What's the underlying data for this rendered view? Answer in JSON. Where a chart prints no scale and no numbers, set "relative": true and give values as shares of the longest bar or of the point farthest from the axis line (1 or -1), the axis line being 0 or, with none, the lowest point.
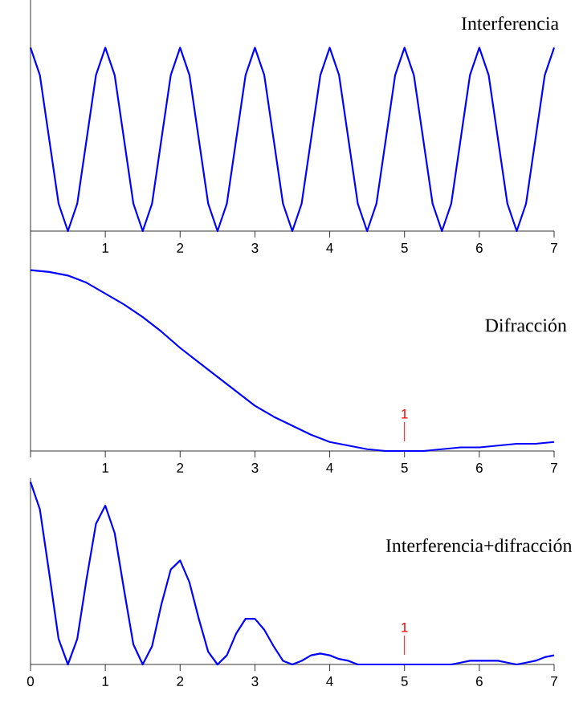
{
  "chart_data": [
    {
      "type": "line",
      "title": "Interferencia",
      "relative": true,
      "tick_labels": "x",
      "x": [
        0,
        0.125,
        0.25,
        0.375,
        0.5,
        0.625,
        0.75,
        0.875,
        1,
        1.125,
        1.25,
        1.375,
        1.5,
        1.625,
        1.75,
        1.875,
        2,
        2.125,
        2.25,
        2.375,
        2.5,
        2.625,
        2.75,
        2.875,
        3,
        3.125,
        3.25,
        3.375,
        3.5,
        3.625,
        3.75,
        3.875,
        4,
        4.125,
        4.25,
        4.375,
        4.5,
        4.625,
        4.75,
        4.875,
        5,
        5.125,
        5.25,
        5.375,
        5.5,
        5.625,
        5.75,
        5.875,
        6,
        6.125,
        6.25,
        6.375,
        6.5,
        6.625,
        6.75,
        6.875,
        7
      ],
      "series": [
        {
          "color": "#0000ff",
          "values": [
            1,
            0.85,
            0.5,
            0.15,
            0,
            0.15,
            0.5,
            0.85,
            1,
            0.85,
            0.5,
            0.15,
            0,
            0.15,
            0.5,
            0.85,
            1,
            0.85,
            0.5,
            0.15,
            0,
            0.15,
            0.5,
            0.85,
            1,
            0.85,
            0.5,
            0.15,
            0,
            0.15,
            0.5,
            0.85,
            1,
            0.85,
            0.5,
            0.15,
            0,
            0.15,
            0.5,
            0.85,
            1,
            0.85,
            0.5,
            0.15,
            0,
            0.15,
            0.5,
            0.85,
            1,
            0.85,
            0.5,
            0.15,
            0,
            0.15,
            0.5,
            0.85,
            1
          ]
        }
      ],
      "xlim": [
        0,
        7
      ],
      "xticks": [
        {
          "value": 0,
          "label": null
        },
        1,
        2,
        3,
        4,
        5,
        6,
        7
      ]
    },
    {
      "type": "line",
      "title": "Difracción",
      "relative": true,
      "tick_labels": "x",
      "x": [
        0,
        0.25,
        0.5,
        0.75,
        1,
        1.25,
        1.5,
        1.75,
        2,
        2.25,
        2.5,
        2.75,
        3,
        3.25,
        3.5,
        3.75,
        4,
        4.25,
        4.5,
        4.75,
        5,
        5.25,
        5.5,
        5.75,
        6,
        6.25,
        6.5,
        6.75,
        7
      ],
      "series": [
        {
          "color": "#0000ff",
          "values": [
            1,
            0.99,
            0.97,
            0.93,
            0.87,
            0.81,
            0.74,
            0.66,
            0.57,
            0.49,
            0.41,
            0.33,
            0.25,
            0.19,
            0.14,
            0.09,
            0.05,
            0.03,
            0.01,
            0,
            0,
            0,
            0.01,
            0.02,
            0.02,
            0.03,
            0.04,
            0.04,
            0.05
          ]
        }
      ],
      "xlim": [
        0,
        7
      ],
      "xticks": [
        {
          "value": 0,
          "label": null
        },
        1,
        2,
        3,
        4,
        5,
        6,
        7
      ],
      "annotations": [
        {
          "text": "1",
          "x": 5,
          "y": 0
        }
      ]
    },
    {
      "type": "line",
      "title": "Interferencia+difracción",
      "relative": true,
      "tick_labels": "x",
      "x": [
        0,
        0.125,
        0.25,
        0.375,
        0.5,
        0.625,
        0.75,
        0.875,
        1,
        1.125,
        1.25,
        1.375,
        1.5,
        1.625,
        1.75,
        1.875,
        2,
        2.125,
        2.25,
        2.375,
        2.5,
        2.625,
        2.75,
        2.875,
        3,
        3.125,
        3.25,
        3.375,
        3.5,
        3.625,
        3.75,
        3.875,
        4,
        4.125,
        4.25,
        4.375,
        4.5,
        4.625,
        4.75,
        4.875,
        5,
        5.125,
        5.25,
        5.375,
        5.5,
        5.625,
        5.75,
        5.875,
        6,
        6.125,
        6.25,
        6.375,
        6.5,
        6.625,
        6.75,
        6.875,
        7
      ],
      "series": [
        {
          "color": "#0000ff",
          "values": [
            1,
            0.85,
            0.5,
            0.14,
            0,
            0.14,
            0.47,
            0.77,
            0.87,
            0.72,
            0.41,
            0.11,
            0,
            0.1,
            0.33,
            0.52,
            0.57,
            0.45,
            0.25,
            0.07,
            0,
            0.05,
            0.17,
            0.25,
            0.25,
            0.19,
            0.1,
            0.02,
            0,
            0.02,
            0.05,
            0.06,
            0.05,
            0.03,
            0.02,
            0,
            0,
            0,
            0,
            0,
            0,
            0,
            0,
            0,
            0,
            0,
            0.01,
            0.02,
            0.02,
            0.02,
            0.02,
            0.01,
            0,
            0.01,
            0.02,
            0.04,
            0.05
          ]
        }
      ],
      "xlim": [
        0,
        7
      ],
      "xticks": [
        0,
        1,
        2,
        3,
        4,
        5,
        6,
        7
      ],
      "annotations": [
        {
          "text": "1",
          "x": 5,
          "y": 0
        }
      ]
    }
  ]
}
